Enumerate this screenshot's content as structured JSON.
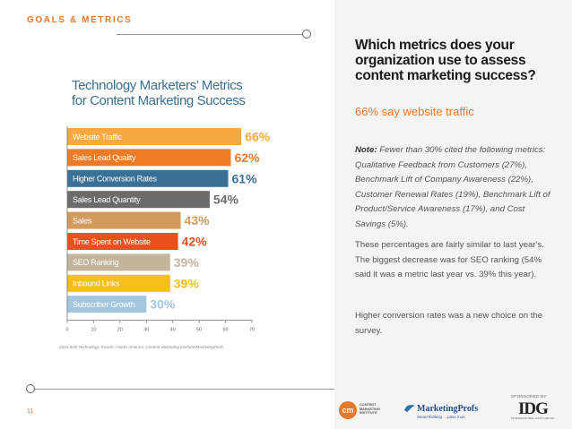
{
  "header": {
    "section_label": "GOALS & METRICS"
  },
  "page": {
    "number": "11"
  },
  "right_panel": {
    "question": "Which metrics does your organization use to assess content marketing success?",
    "highlight": "66% say website traffic",
    "note_label": "Note:",
    "note_text": "Fewer than 30% cited the following metrics: Qualitative Feedback from Customers (27%), Benchmark Lift of Company Awareness (22%), Customer Renewal Rates (19%), Benchmark Lift of Product/Service Awareness (17%), and Cost Savings (5%).",
    "paragraph1": "These percentages are fairly similar to last year's. The biggest decrease was for SEO ranking (54% said it was a metric last year vs. 39% this year).",
    "paragraph2": "Higher conversion rates was a new choice on the survey."
  },
  "footer": {
    "sponsored_by": "SPONSORED BY:",
    "cmi_logo": {
      "mark": "cm",
      "text": "CONTENT MARKETING INSTITUTE"
    },
    "mp_logo": {
      "name": "MarketingProfs",
      "tagline": "Smart thinking ... pass it on."
    },
    "idg_logo": {
      "text": "IDG",
      "sub": "INTERNATIONAL DATA GROUP"
    }
  },
  "source": "2015 B2B Technology Trends—North America: Content Marketing Institute/MarketingProfs",
  "colors": {
    "accent": "#e8792a",
    "title_blue": "#3b6f8f",
    "panel_bg": "#f4f4f2"
  },
  "chart_data": {
    "type": "bar",
    "orientation": "horizontal",
    "title_lines": [
      "Technology Marketers’ Metrics",
      "for Content Marketing Success"
    ],
    "categories": [
      "Website Traffic",
      "Sales Lead Quality",
      "Higher Conversion Rates",
      "Sales Lead Quantity",
      "Sales",
      "Time Spent on Website",
      "SEO Ranking",
      "Inbound Links",
      "Subscriber Growth"
    ],
    "values": [
      66,
      62,
      61,
      54,
      43,
      42,
      39,
      39,
      30
    ],
    "value_labels": [
      "66%",
      "62%",
      "61%",
      "54%",
      "43%",
      "42%",
      "39%",
      "39%",
      "30%"
    ],
    "bar_colors": [
      "#f6a940",
      "#ef7b24",
      "#3a6f96",
      "#6b6b6b",
      "#d39a5e",
      "#e9501c",
      "#c4b49c",
      "#f5c015",
      "#a2c7df"
    ],
    "label_colors": [
      "#f6a940",
      "#ef7b24",
      "#3a6f96",
      "#6b6b6b",
      "#d39a5e",
      "#e9501c",
      "#c4b49c",
      "#f5c015",
      "#a2c7df"
    ],
    "xticks": [
      "0",
      "10",
      "20",
      "30",
      "40",
      "50",
      "60",
      "70"
    ],
    "xlim": [
      0,
      70
    ]
  }
}
